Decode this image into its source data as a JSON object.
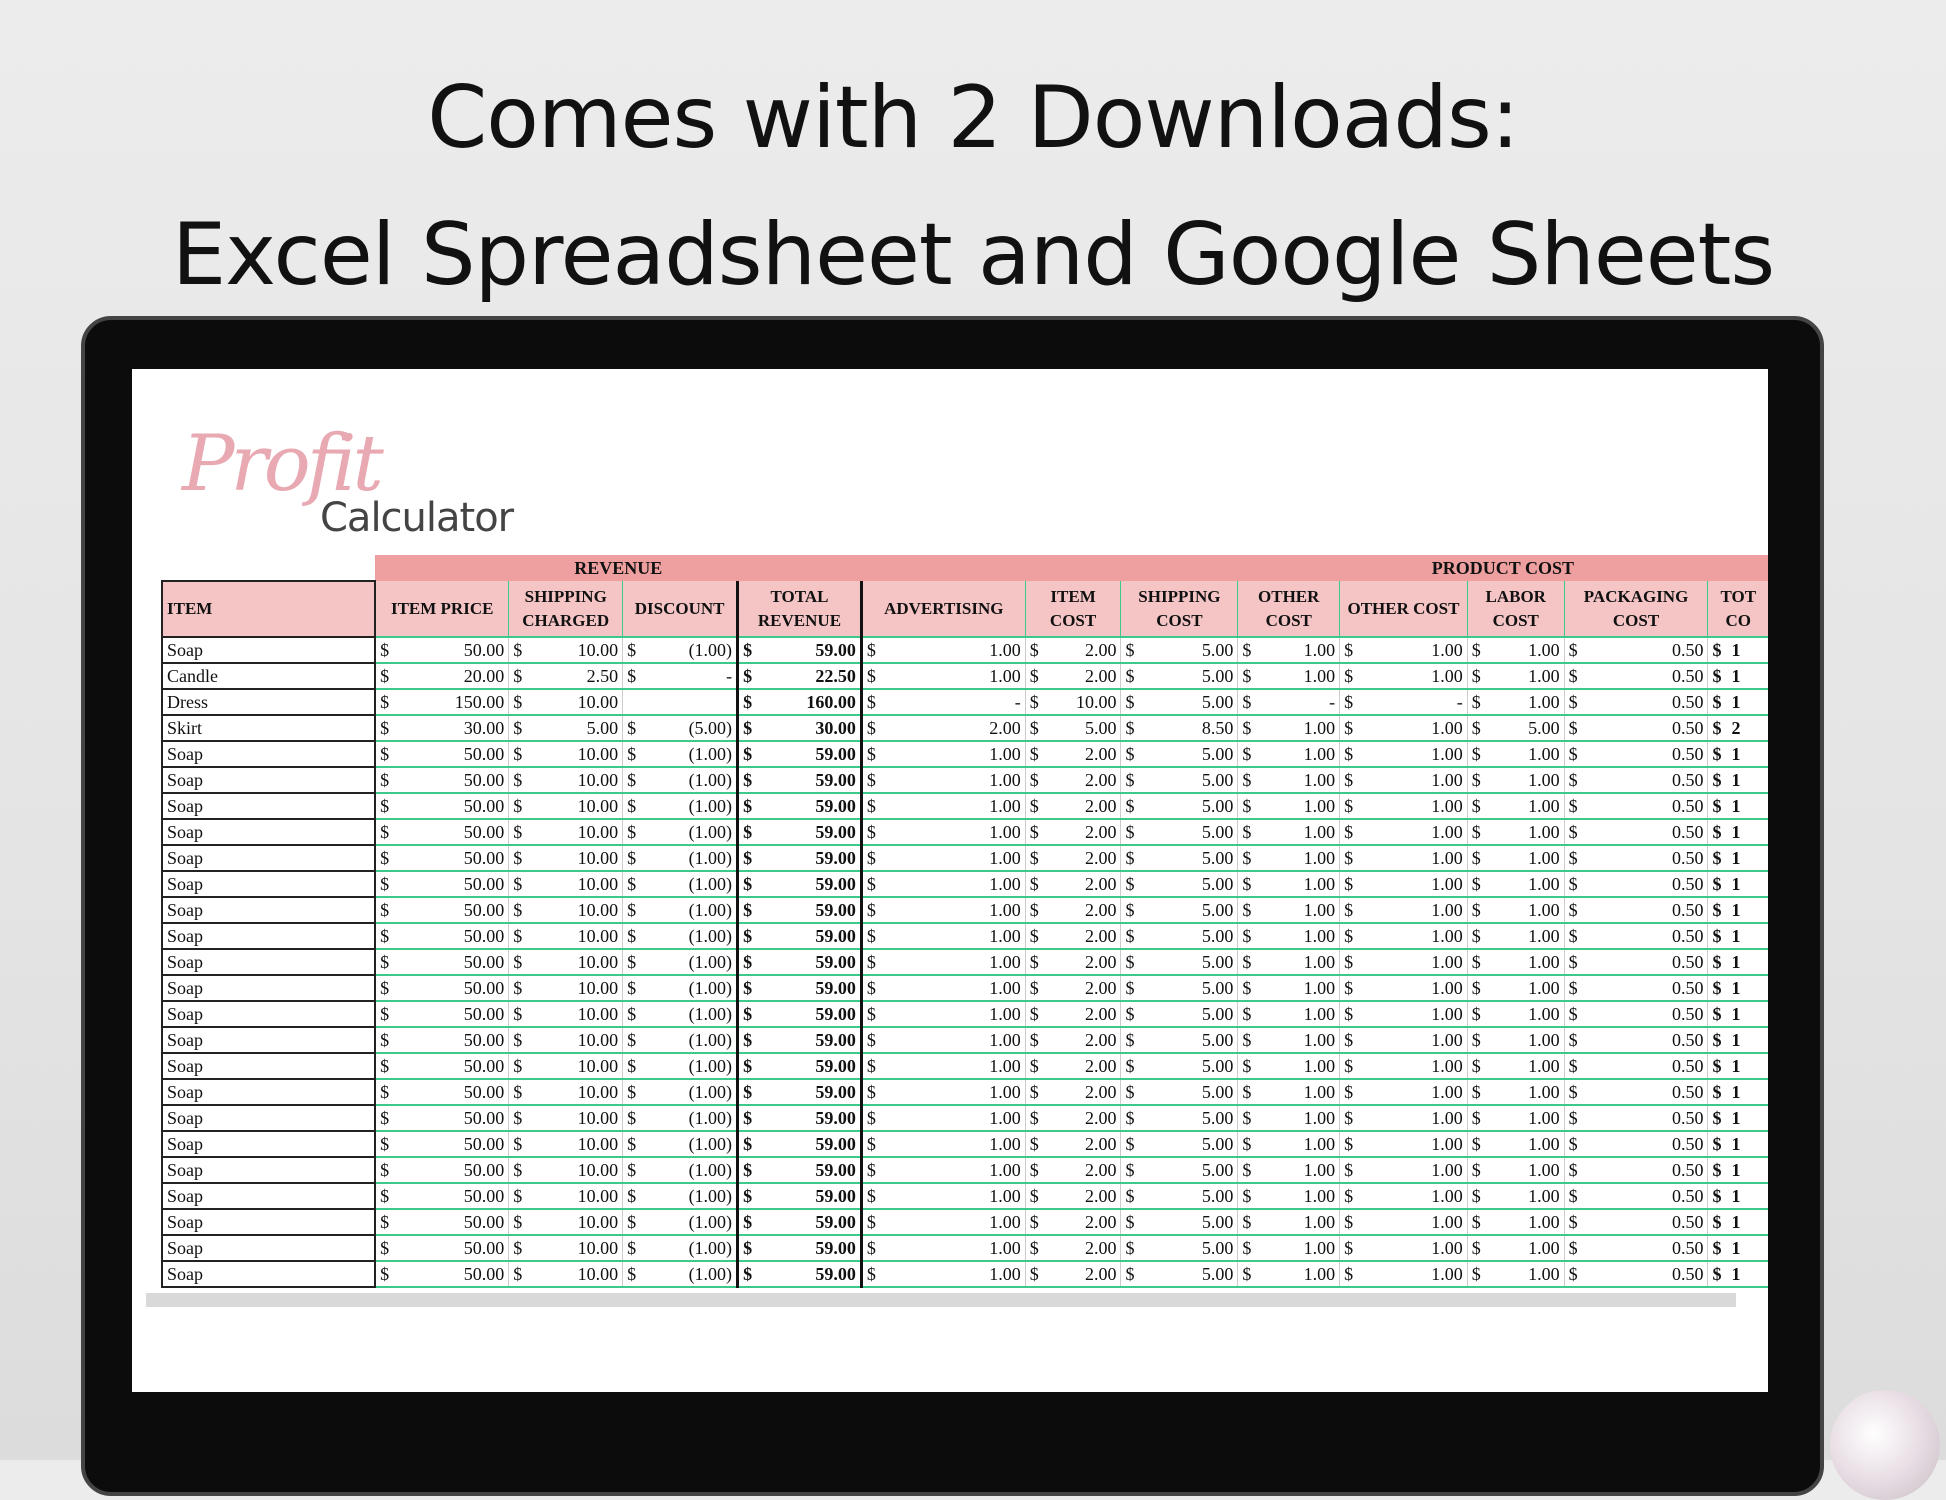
{
  "title": {
    "line1": "Comes with 2 Downloads:",
    "line2": "Excel Spreadsheet and Google Sheets"
  },
  "logo": {
    "script": "Profit",
    "word": "Calculator"
  },
  "colors": {
    "group_header": "#ee9f9f",
    "column_header": "#f5c5c6",
    "row_line": "#3cc98a",
    "logo_pink": "#e8a9b3"
  },
  "groups": [
    {
      "label": "",
      "span": 1,
      "blank": true
    },
    {
      "label": "REVENUE",
      "span": 4
    },
    {
      "label": "",
      "span": 3
    },
    {
      "label": "PRODUCT COST",
      "span": 5
    }
  ],
  "columns": [
    "ITEM",
    "ITEM PRICE",
    "SHIPPING CHARGED",
    "DISCOUNT",
    "TOTAL REVENUE",
    "ADVERTISING",
    "ITEM COST",
    "SHIPPING COST",
    "OTHER COST",
    "OTHER COST",
    "LABOR COST",
    "PACKAGING COST",
    "TOT CO"
  ],
  "rows": [
    [
      "Soap",
      "50.00",
      "10.00",
      "(1.00)",
      "59.00",
      "1.00",
      "2.00",
      "5.00",
      "1.00",
      "1.00",
      "1.00",
      "0.50",
      "1"
    ],
    [
      "Candle",
      "20.00",
      "2.50",
      "-",
      "22.50",
      "1.00",
      "2.00",
      "5.00",
      "1.00",
      "1.00",
      "1.00",
      "0.50",
      "1"
    ],
    [
      "Dress",
      "150.00",
      "10.00",
      "",
      "160.00",
      "-",
      "10.00",
      "5.00",
      "-",
      "-",
      "1.00",
      "0.50",
      "1"
    ],
    [
      "Skirt",
      "30.00",
      "5.00",
      "(5.00)",
      "30.00",
      "2.00",
      "5.00",
      "8.50",
      "1.00",
      "1.00",
      "5.00",
      "0.50",
      "2"
    ],
    [
      "Soap",
      "50.00",
      "10.00",
      "(1.00)",
      "59.00",
      "1.00",
      "2.00",
      "5.00",
      "1.00",
      "1.00",
      "1.00",
      "0.50",
      "1"
    ],
    [
      "Soap",
      "50.00",
      "10.00",
      "(1.00)",
      "59.00",
      "1.00",
      "2.00",
      "5.00",
      "1.00",
      "1.00",
      "1.00",
      "0.50",
      "1"
    ],
    [
      "Soap",
      "50.00",
      "10.00",
      "(1.00)",
      "59.00",
      "1.00",
      "2.00",
      "5.00",
      "1.00",
      "1.00",
      "1.00",
      "0.50",
      "1"
    ],
    [
      "Soap",
      "50.00",
      "10.00",
      "(1.00)",
      "59.00",
      "1.00",
      "2.00",
      "5.00",
      "1.00",
      "1.00",
      "1.00",
      "0.50",
      "1"
    ],
    [
      "Soap",
      "50.00",
      "10.00",
      "(1.00)",
      "59.00",
      "1.00",
      "2.00",
      "5.00",
      "1.00",
      "1.00",
      "1.00",
      "0.50",
      "1"
    ],
    [
      "Soap",
      "50.00",
      "10.00",
      "(1.00)",
      "59.00",
      "1.00",
      "2.00",
      "5.00",
      "1.00",
      "1.00",
      "1.00",
      "0.50",
      "1"
    ],
    [
      "Soap",
      "50.00",
      "10.00",
      "(1.00)",
      "59.00",
      "1.00",
      "2.00",
      "5.00",
      "1.00",
      "1.00",
      "1.00",
      "0.50",
      "1"
    ],
    [
      "Soap",
      "50.00",
      "10.00",
      "(1.00)",
      "59.00",
      "1.00",
      "2.00",
      "5.00",
      "1.00",
      "1.00",
      "1.00",
      "0.50",
      "1"
    ],
    [
      "Soap",
      "50.00",
      "10.00",
      "(1.00)",
      "59.00",
      "1.00",
      "2.00",
      "5.00",
      "1.00",
      "1.00",
      "1.00",
      "0.50",
      "1"
    ],
    [
      "Soap",
      "50.00",
      "10.00",
      "(1.00)",
      "59.00",
      "1.00",
      "2.00",
      "5.00",
      "1.00",
      "1.00",
      "1.00",
      "0.50",
      "1"
    ],
    [
      "Soap",
      "50.00",
      "10.00",
      "(1.00)",
      "59.00",
      "1.00",
      "2.00",
      "5.00",
      "1.00",
      "1.00",
      "1.00",
      "0.50",
      "1"
    ],
    [
      "Soap",
      "50.00",
      "10.00",
      "(1.00)",
      "59.00",
      "1.00",
      "2.00",
      "5.00",
      "1.00",
      "1.00",
      "1.00",
      "0.50",
      "1"
    ],
    [
      "Soap",
      "50.00",
      "10.00",
      "(1.00)",
      "59.00",
      "1.00",
      "2.00",
      "5.00",
      "1.00",
      "1.00",
      "1.00",
      "0.50",
      "1"
    ],
    [
      "Soap",
      "50.00",
      "10.00",
      "(1.00)",
      "59.00",
      "1.00",
      "2.00",
      "5.00",
      "1.00",
      "1.00",
      "1.00",
      "0.50",
      "1"
    ],
    [
      "Soap",
      "50.00",
      "10.00",
      "(1.00)",
      "59.00",
      "1.00",
      "2.00",
      "5.00",
      "1.00",
      "1.00",
      "1.00",
      "0.50",
      "1"
    ],
    [
      "Soap",
      "50.00",
      "10.00",
      "(1.00)",
      "59.00",
      "1.00",
      "2.00",
      "5.00",
      "1.00",
      "1.00",
      "1.00",
      "0.50",
      "1"
    ],
    [
      "Soap",
      "50.00",
      "10.00",
      "(1.00)",
      "59.00",
      "1.00",
      "2.00",
      "5.00",
      "1.00",
      "1.00",
      "1.00",
      "0.50",
      "1"
    ],
    [
      "Soap",
      "50.00",
      "10.00",
      "(1.00)",
      "59.00",
      "1.00",
      "2.00",
      "5.00",
      "1.00",
      "1.00",
      "1.00",
      "0.50",
      "1"
    ],
    [
      "Soap",
      "50.00",
      "10.00",
      "(1.00)",
      "59.00",
      "1.00",
      "2.00",
      "5.00",
      "1.00",
      "1.00",
      "1.00",
      "0.50",
      "1"
    ],
    [
      "Soap",
      "50.00",
      "10.00",
      "(1.00)",
      "59.00",
      "1.00",
      "2.00",
      "5.00",
      "1.00",
      "1.00",
      "1.00",
      "0.50",
      "1"
    ],
    [
      "Soap",
      "50.00",
      "10.00",
      "(1.00)",
      "59.00",
      "1.00",
      "2.00",
      "5.00",
      "1.00",
      "1.00",
      "1.00",
      "0.50",
      "1"
    ]
  ],
  "currency": "$"
}
